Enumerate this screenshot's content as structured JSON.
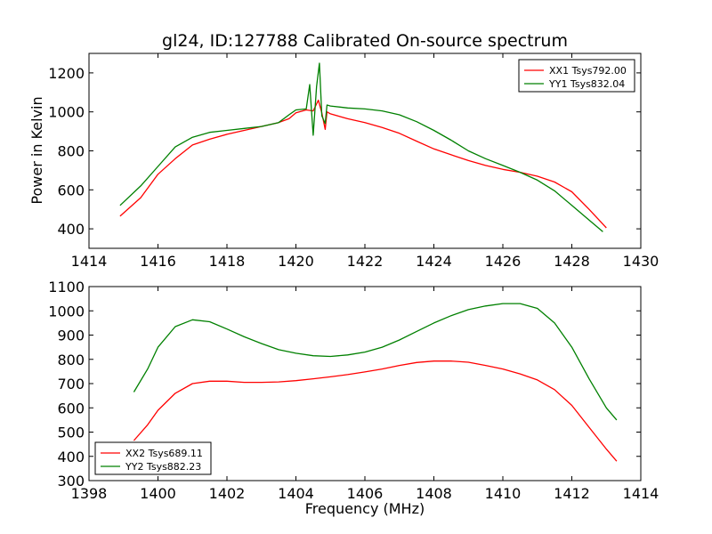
{
  "chart_data": [
    {
      "type": "line",
      "title": "gl24, ID:127788 Calibrated On-source spectrum",
      "xlabel": "",
      "ylabel": "Power in Kelvin",
      "xlim": [
        1414,
        1430
      ],
      "ylim": [
        300,
        1300
      ],
      "xticks": [
        "1414",
        "1416",
        "1418",
        "1420",
        "1422",
        "1424",
        "1426",
        "1428",
        "1430"
      ],
      "yticks": [
        "400",
        "600",
        "800",
        "1000",
        "1200"
      ],
      "legend_position": "top-right",
      "series": [
        {
          "name": "XX1 Tsys792.00",
          "color": "#ff0000",
          "points": [
            [
              1414.9,
              465
            ],
            [
              1415.5,
              560
            ],
            [
              1416,
              680
            ],
            [
              1416.5,
              760
            ],
            [
              1417,
              830
            ],
            [
              1417.5,
              860
            ],
            [
              1418,
              885
            ],
            [
              1418.5,
              905
            ],
            [
              1419,
              925
            ],
            [
              1419.5,
              945
            ],
            [
              1419.8,
              965
            ],
            [
              1420,
              995
            ],
            [
              1420.3,
              1010
            ],
            [
              1420.5,
              1005
            ],
            [
              1420.65,
              1060
            ],
            [
              1420.75,
              995
            ],
            [
              1420.85,
              910
            ],
            [
              1420.9,
              1000
            ],
            [
              1421,
              990
            ],
            [
              1421.5,
              965
            ],
            [
              1422,
              945
            ],
            [
              1422.5,
              920
            ],
            [
              1423,
              890
            ],
            [
              1423.5,
              850
            ],
            [
              1424,
              810
            ],
            [
              1424.5,
              780
            ],
            [
              1425,
              750
            ],
            [
              1425.5,
              725
            ],
            [
              1426,
              705
            ],
            [
              1426.5,
              690
            ],
            [
              1427,
              670
            ],
            [
              1427.5,
              640
            ],
            [
              1428,
              590
            ],
            [
              1428.5,
              500
            ],
            [
              1429,
              405
            ]
          ]
        },
        {
          "name": "YY1 Tsys832.04",
          "color": "#008000",
          "points": [
            [
              1414.9,
              520
            ],
            [
              1415.5,
              620
            ],
            [
              1416,
              720
            ],
            [
              1416.5,
              820
            ],
            [
              1417,
              870
            ],
            [
              1417.5,
              895
            ],
            [
              1418,
              905
            ],
            [
              1418.5,
              915
            ],
            [
              1419,
              925
            ],
            [
              1419.5,
              945
            ],
            [
              1419.8,
              985
            ],
            [
              1420,
              1010
            ],
            [
              1420.3,
              1015
            ],
            [
              1420.4,
              1140
            ],
            [
              1420.5,
              880
            ],
            [
              1420.6,
              1130
            ],
            [
              1420.68,
              1250
            ],
            [
              1420.75,
              980
            ],
            [
              1420.85,
              940
            ],
            [
              1420.9,
              1035
            ],
            [
              1421,
              1030
            ],
            [
              1421.5,
              1020
            ],
            [
              1422,
              1015
            ],
            [
              1422.5,
              1005
            ],
            [
              1423,
              985
            ],
            [
              1423.5,
              950
            ],
            [
              1424,
              905
            ],
            [
              1424.5,
              855
            ],
            [
              1425,
              800
            ],
            [
              1425.5,
              760
            ],
            [
              1426,
              725
            ],
            [
              1426.5,
              690
            ],
            [
              1427,
              650
            ],
            [
              1427.5,
              595
            ],
            [
              1428,
              520
            ],
            [
              1428.5,
              445
            ],
            [
              1428.9,
              385
            ]
          ]
        }
      ]
    },
    {
      "type": "line",
      "title": "",
      "xlabel": "Frequency (MHz)",
      "ylabel": "",
      "xlim": [
        1398,
        1414
      ],
      "ylim": [
        300,
        1100
      ],
      "xticks": [
        "1398",
        "1400",
        "1402",
        "1404",
        "1406",
        "1408",
        "1410",
        "1412",
        "1414"
      ],
      "yticks": [
        "300",
        "400",
        "500",
        "600",
        "700",
        "800",
        "900",
        "1000",
        "1100"
      ],
      "legend_position": "bottom-left",
      "series": [
        {
          "name": "XX2 Tsys689.11",
          "color": "#ff0000",
          "points": [
            [
              1399.3,
              465
            ],
            [
              1399.7,
              530
            ],
            [
              1400,
              590
            ],
            [
              1400.5,
              660
            ],
            [
              1401,
              700
            ],
            [
              1401.5,
              710
            ],
            [
              1402,
              710
            ],
            [
              1402.5,
              705
            ],
            [
              1403,
              705
            ],
            [
              1403.5,
              707
            ],
            [
              1404,
              712
            ],
            [
              1404.5,
              720
            ],
            [
              1405,
              728
            ],
            [
              1405.5,
              737
            ],
            [
              1406,
              748
            ],
            [
              1406.5,
              760
            ],
            [
              1407,
              775
            ],
            [
              1407.5,
              787
            ],
            [
              1408,
              793
            ],
            [
              1408.5,
              793
            ],
            [
              1409,
              788
            ],
            [
              1409.5,
              775
            ],
            [
              1410,
              760
            ],
            [
              1410.5,
              740
            ],
            [
              1411,
              715
            ],
            [
              1411.5,
              675
            ],
            [
              1412,
              610
            ],
            [
              1412.5,
              520
            ],
            [
              1413,
              430
            ],
            [
              1413.3,
              380
            ]
          ]
        },
        {
          "name": "YY2 Tsys882.23",
          "color": "#008000",
          "points": [
            [
              1399.3,
              665
            ],
            [
              1399.7,
              760
            ],
            [
              1400,
              850
            ],
            [
              1400.5,
              935
            ],
            [
              1401,
              963
            ],
            [
              1401.5,
              955
            ],
            [
              1402,
              925
            ],
            [
              1402.5,
              893
            ],
            [
              1403,
              865
            ],
            [
              1403.5,
              840
            ],
            [
              1404,
              825
            ],
            [
              1404.5,
              815
            ],
            [
              1405,
              812
            ],
            [
              1405.5,
              818
            ],
            [
              1406,
              830
            ],
            [
              1406.5,
              850
            ],
            [
              1407,
              880
            ],
            [
              1407.5,
              915
            ],
            [
              1408,
              950
            ],
            [
              1408.5,
              980
            ],
            [
              1409,
              1005
            ],
            [
              1409.5,
              1020
            ],
            [
              1410,
              1030
            ],
            [
              1410.5,
              1030
            ],
            [
              1411,
              1010
            ],
            [
              1411.5,
              950
            ],
            [
              1412,
              850
            ],
            [
              1412.5,
              720
            ],
            [
              1413,
              600
            ],
            [
              1413.3,
              550
            ]
          ]
        }
      ]
    }
  ]
}
